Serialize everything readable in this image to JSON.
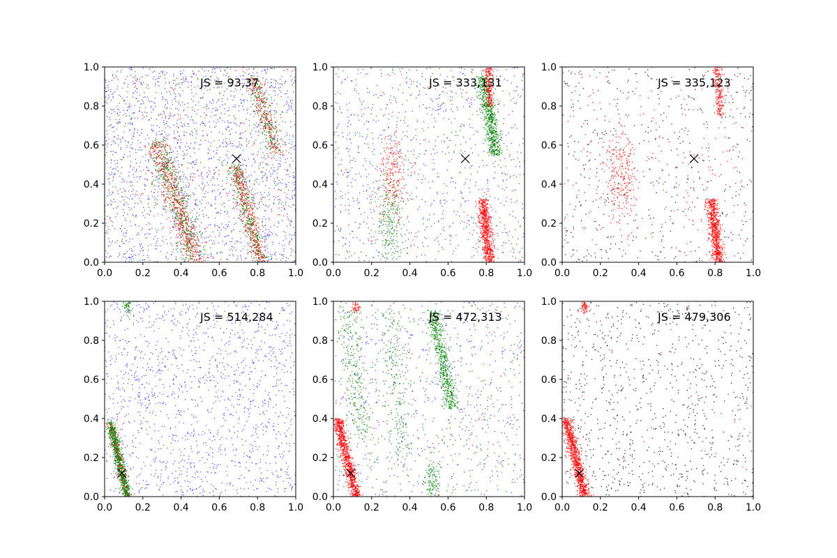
{
  "colors": {
    "blue": "#0000ff",
    "green": "#008000",
    "red": "#ff0000",
    "black": "#000000"
  },
  "chart_data": [
    {
      "type": "scatter",
      "panel": "top-left",
      "title": "",
      "xlabel": "",
      "ylabel": "",
      "xlim": [
        0,
        1
      ],
      "ylim": [
        0,
        1
      ],
      "xticks": [
        "0.0",
        "0.2",
        "0.4",
        "0.6",
        "0.8",
        "1.0"
      ],
      "yticks": [
        "0.0",
        "0.2",
        "0.4",
        "0.6",
        "0.8",
        "1.0"
      ],
      "annotation": "JS = 93,37",
      "marker": {
        "x": 0.69,
        "y": 0.53
      },
      "series": [
        {
          "color": "blue",
          "point_count": 1800,
          "pattern": "uniform background scatter"
        },
        {
          "color": "green",
          "point_count": 1200,
          "pattern": "bands from (0.27,0.6) to (0.48,0.0); (0.68,0.5) to (0.82,0.0); (0.78,0.85) to (0.9,0.55)"
        },
        {
          "color": "red",
          "point_count": 1200,
          "pattern": "same bands as green"
        }
      ]
    },
    {
      "type": "scatter",
      "panel": "top-center",
      "title": "",
      "xlabel": "",
      "ylabel": "",
      "xlim": [
        0,
        1
      ],
      "ylim": [
        0,
        1
      ],
      "xticks": [
        "0.0",
        "0.2",
        "0.4",
        "0.6",
        "0.8",
        "1.0"
      ],
      "yticks": [
        "0.0",
        "0.2",
        "0.4",
        "0.6",
        "0.8",
        "1.0"
      ],
      "annotation": "JS = 333,131",
      "marker": {
        "x": 0.69,
        "y": 0.53
      },
      "series": [
        {
          "color": "blue",
          "point_count": 800,
          "pattern": "sparse background"
        },
        {
          "color": "green",
          "point_count": 1100,
          "pattern": "dense band (0.78,0.95)-(0.85,0.55); sparse band x~0.3 y 0-0.45"
        },
        {
          "color": "red",
          "point_count": 1200,
          "pattern": "dense band (0.78,0.3)-(0.82,0.0); band x~0.81 y 0.8-1.0; cluster x~0.3 y 0.3-0.6"
        }
      ]
    },
    {
      "type": "scatter",
      "panel": "top-right",
      "title": "",
      "xlabel": "",
      "ylabel": "",
      "xlim": [
        0,
        1
      ],
      "ylim": [
        0,
        1
      ],
      "xticks": [
        "0.0",
        "0.2",
        "0.4",
        "0.6",
        "0.8",
        "1.0"
      ],
      "yticks": [
        "0.0",
        "0.2",
        "0.4",
        "0.6",
        "0.8",
        "1.0"
      ],
      "annotation": "JS = 335,123",
      "marker": {
        "x": 0.69,
        "y": 0.53
      },
      "series": [
        {
          "color": "black",
          "point_count": 450,
          "pattern": "sparse background"
        },
        {
          "color": "red",
          "point_count": 1400,
          "pattern": "dense band (0.78,0.3)-(0.82,0.0); band x~0.82 y 0.75-1.0; cluster x~0.3 y 0.3-0.6; sparse background"
        }
      ]
    },
    {
      "type": "scatter",
      "panel": "bottom-left",
      "title": "",
      "xlabel": "",
      "ylabel": "",
      "xlim": [
        0,
        1
      ],
      "ylim": [
        0,
        1
      ],
      "xticks": [
        "0.0",
        "0.2",
        "0.4",
        "0.6",
        "0.8",
        "1.0"
      ],
      "yticks": [
        "0.0",
        "0.2",
        "0.4",
        "0.6",
        "0.8",
        "1.0"
      ],
      "annotation": "JS = 514,284",
      "marker": {
        "x": 0.09,
        "y": 0.12
      },
      "series": [
        {
          "color": "blue",
          "point_count": 1500,
          "pattern": "uniform background"
        },
        {
          "color": "green",
          "point_count": 700,
          "pattern": "dense band (0.03,0.38)-(0.12,0.0); small cluster x~0.12 y 0.95-1.0"
        },
        {
          "color": "red",
          "point_count": 300,
          "pattern": "under green band"
        }
      ]
    },
    {
      "type": "scatter",
      "panel": "bottom-center",
      "title": "",
      "xlabel": "",
      "ylabel": "",
      "xlim": [
        0,
        1
      ],
      "ylim": [
        0,
        1
      ],
      "xticks": [
        "0.0",
        "0.2",
        "0.4",
        "0.6",
        "0.8",
        "1.0"
      ],
      "yticks": [
        "0.0",
        "0.2",
        "0.4",
        "0.6",
        "0.8",
        "1.0"
      ],
      "annotation": "JS = 472,313",
      "marker": {
        "x": 0.09,
        "y": 0.12
      },
      "series": [
        {
          "color": "blue",
          "point_count": 700,
          "pattern": "sparse background"
        },
        {
          "color": "green",
          "point_count": 1400,
          "pattern": "dense band (0.52,0.95)-(0.62,0.45); bands x~0.1, 0.3, 0.52 lower"
        },
        {
          "color": "red",
          "point_count": 1000,
          "pattern": "dense band (0.02,0.4)-(0.12,0.0); cluster x~0.12 y 0.95-1.0"
        }
      ]
    },
    {
      "type": "scatter",
      "panel": "bottom-right",
      "title": "",
      "xlabel": "",
      "ylabel": "",
      "xlim": [
        0,
        1
      ],
      "ylim": [
        0,
        1
      ],
      "xticks": [
        "0.0",
        "0.2",
        "0.4",
        "0.6",
        "0.8",
        "1.0"
      ],
      "yticks": [
        "0.0",
        "0.2",
        "0.4",
        "0.6",
        "0.8",
        "1.0"
      ],
      "annotation": "JS = 479,306",
      "marker": {
        "x": 0.09,
        "y": 0.12
      },
      "series": [
        {
          "color": "black",
          "point_count": 900,
          "pattern": "sparse background"
        },
        {
          "color": "red",
          "point_count": 1100,
          "pattern": "dense band (0.02,0.4)-(0.12,0.0); cluster x~0.12 y 0.95-1.0"
        }
      ]
    }
  ]
}
